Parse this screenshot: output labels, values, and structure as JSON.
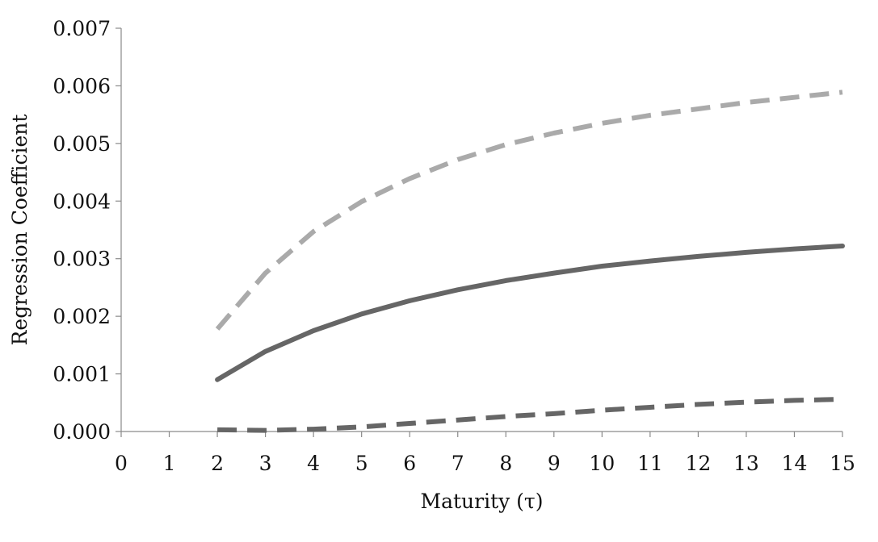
{
  "chart_data": {
    "type": "line",
    "title": "",
    "xlabel": "Maturity (τ)",
    "ylabel": "Regression Coefficient",
    "xlim": [
      0,
      15
    ],
    "ylim": [
      0,
      0.007
    ],
    "x_ticks": [
      "0",
      "1",
      "2",
      "3",
      "4",
      "5",
      "6",
      "7",
      "8",
      "9",
      "10",
      "11",
      "12",
      "13",
      "14",
      "15"
    ],
    "y_ticks": [
      "0.000",
      "0.001",
      "0.002",
      "0.003",
      "0.004",
      "0.005",
      "0.006",
      "0.007"
    ],
    "grid": false,
    "legend": "none",
    "x": [
      2,
      3,
      4,
      5,
      6,
      7,
      8,
      9,
      10,
      11,
      12,
      13,
      14,
      15
    ],
    "series": [
      {
        "style": "dashed",
        "color": "#aaaaaa",
        "values": [
          0.00178,
          0.00275,
          0.00347,
          0.00399,
          0.00439,
          0.00472,
          0.00498,
          0.00518,
          0.00535,
          0.00549,
          0.0056,
          0.00571,
          0.0058,
          0.00589
        ]
      },
      {
        "style": "solid",
        "color": "#666666",
        "values": [
          0.0009,
          0.00139,
          0.00175,
          0.00204,
          0.00227,
          0.00246,
          0.00262,
          0.00275,
          0.00287,
          0.00296,
          0.00304,
          0.00311,
          0.00317,
          0.00322
        ]
      },
      {
        "style": "dashed",
        "color": "#666666",
        "values": [
          3e-05,
          2e-05,
          4e-05,
          8e-05,
          0.00014,
          0.0002,
          0.00026,
          0.00031,
          0.00037,
          0.00042,
          0.00047,
          0.00051,
          0.00054,
          0.00056
        ]
      }
    ]
  }
}
